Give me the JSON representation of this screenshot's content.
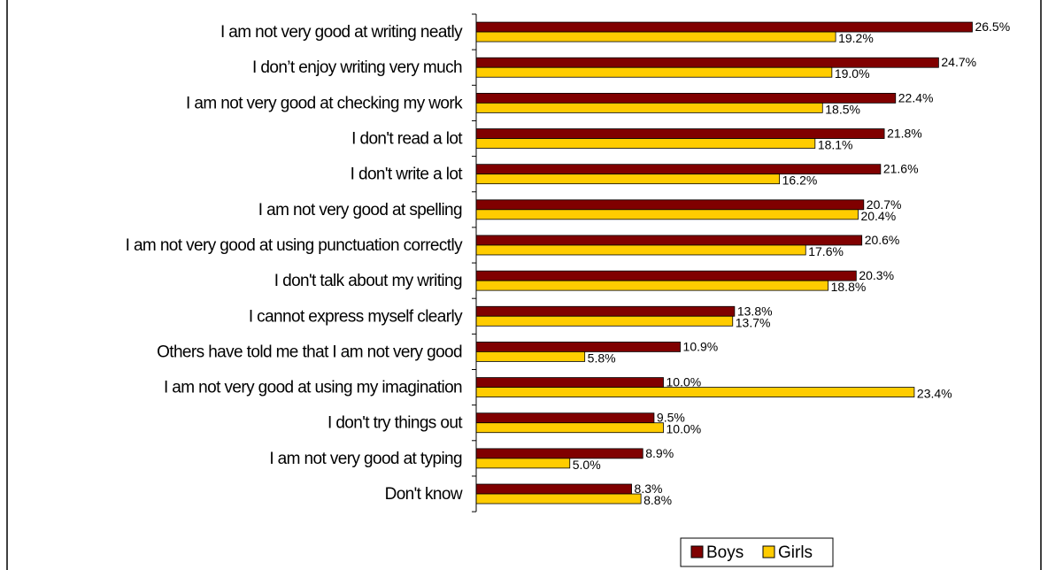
{
  "chart_data": {
    "type": "bar",
    "orientation": "horizontal",
    "categories": [
      "I am not very good at writing neatly",
      "I don’t enjoy writing very much",
      "I am not very good at checking my work",
      "I don't read a lot",
      "I don't write a lot",
      "I am not very good at spelling",
      "I am not very good at using punctuation correctly",
      "I don't talk about my writing",
      "I cannot express myself clearly",
      "Others have told me that I am not very good",
      "I am not very good at using my imagination",
      "I don't try things out",
      "I am not very good at typing",
      "Don't know"
    ],
    "series": [
      {
        "name": "Boys",
        "color": "#800000",
        "values": [
          26.5,
          24.7,
          22.4,
          21.8,
          21.6,
          20.7,
          20.6,
          20.3,
          13.8,
          10.9,
          10.0,
          9.5,
          8.9,
          8.3
        ],
        "labels": [
          "26.5%",
          "24.7%",
          "22.4%",
          "21.8%",
          "21.6%",
          "20.7%",
          "20.6%",
          "20.3%",
          "13.8%",
          "10.9%",
          "10.0%",
          "9.5%",
          "8.9%",
          "8.3%"
        ]
      },
      {
        "name": "Girls",
        "color": "#FFCC00",
        "values": [
          19.2,
          19.0,
          18.5,
          18.1,
          16.2,
          20.4,
          17.6,
          18.8,
          13.7,
          5.8,
          23.4,
          10.0,
          5.0,
          8.8
        ],
        "labels": [
          "19.2%",
          "19.0%",
          "18.5%",
          "18.1%",
          "16.2%",
          "20.4%",
          "17.6%",
          "18.8%",
          "13.7%",
          "5.8%",
          "23.4%",
          "10.0%",
          "5.0%",
          "8.8%"
        ]
      }
    ],
    "xlim": [
      0,
      30
    ],
    "grid": false,
    "legend_position": "bottom-right",
    "title": "",
    "xlabel": "",
    "ylabel": ""
  }
}
